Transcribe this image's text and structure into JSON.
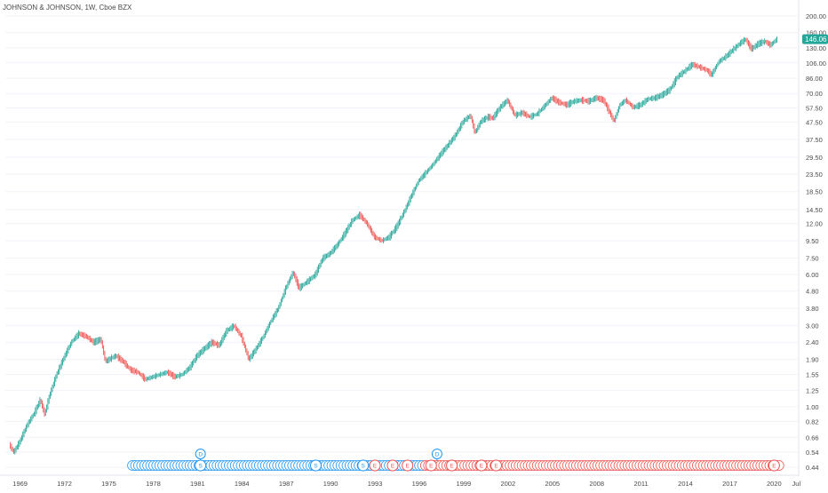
{
  "header": {
    "symbol_line": "JOHNSON & JOHNSON, 1W, Cboe BZX"
  },
  "colors": {
    "up": "#26a69a",
    "down": "#ef5350",
    "price_badge": "#26a69a",
    "dividend_marker": "#2196f3",
    "earnings_marker": "#ef5350",
    "split_marker": "#2196f3",
    "axis_text": "#4a4a4a",
    "axis_line": "#e0e3eb"
  },
  "last_price_label": "146.06",
  "chart_data": {
    "type": "candlestick",
    "title": "JOHNSON & JOHNSON, 1W, Cboe BZX",
    "y_scale": "log",
    "ylim": [
      0.4,
      210
    ],
    "x_range": [
      1968.0,
      2021.6
    ],
    "y_ticks": [
      "200.00",
      "160.00",
      "130.00",
      "106.00",
      "86.00",
      "70.00",
      "57.50",
      "47.50",
      "37.50",
      "29.50",
      "23.50",
      "18.50",
      "14.50",
      "12.00",
      "9.50",
      "7.50",
      "6.00",
      "4.80",
      "3.80",
      "3.00",
      "2.40",
      "1.90",
      "1.55",
      "1.25",
      "1.00",
      "0.82",
      "0.66",
      "0.54",
      "0.44"
    ],
    "x_ticks": [
      "1969",
      "1972",
      "1975",
      "1978",
      "1981",
      "1984",
      "1987",
      "1990",
      "1993",
      "1996",
      "1999",
      "2002",
      "2005",
      "2008",
      "2011",
      "2014",
      "2017",
      "2020",
      "Jul"
    ],
    "price_path": [
      [
        1968.3,
        0.6
      ],
      [
        1968.6,
        0.54
      ],
      [
        1969.0,
        0.62
      ],
      [
        1969.5,
        0.78
      ],
      [
        1970.0,
        0.92
      ],
      [
        1970.4,
        1.1
      ],
      [
        1970.7,
        0.9
      ],
      [
        1971.0,
        1.15
      ],
      [
        1971.5,
        1.55
      ],
      [
        1972.0,
        1.95
      ],
      [
        1972.5,
        2.4
      ],
      [
        1973.0,
        2.7
      ],
      [
        1973.5,
        2.6
      ],
      [
        1974.0,
        2.4
      ],
      [
        1974.5,
        2.5
      ],
      [
        1974.8,
        1.85
      ],
      [
        1975.5,
        2.0
      ],
      [
        1976.0,
        1.85
      ],
      [
        1976.5,
        1.65
      ],
      [
        1977.0,
        1.6
      ],
      [
        1977.5,
        1.45
      ],
      [
        1978.0,
        1.5
      ],
      [
        1978.5,
        1.55
      ],
      [
        1979.0,
        1.6
      ],
      [
        1979.5,
        1.5
      ],
      [
        1980.0,
        1.55
      ],
      [
        1980.5,
        1.7
      ],
      [
        1981.0,
        2.0
      ],
      [
        1981.5,
        2.2
      ],
      [
        1982.0,
        2.4
      ],
      [
        1982.5,
        2.3
      ],
      [
        1983.0,
        2.8
      ],
      [
        1983.5,
        3.0
      ],
      [
        1984.0,
        2.6
      ],
      [
        1984.5,
        1.9
      ],
      [
        1985.0,
        2.2
      ],
      [
        1985.5,
        2.6
      ],
      [
        1986.0,
        3.2
      ],
      [
        1986.5,
        3.8
      ],
      [
        1987.0,
        5.0
      ],
      [
        1987.5,
        6.2
      ],
      [
        1987.9,
        5.0
      ],
      [
        1988.5,
        5.5
      ],
      [
        1989.0,
        6.0
      ],
      [
        1989.5,
        7.5
      ],
      [
        1990.0,
        8.0
      ],
      [
        1990.5,
        9.0
      ],
      [
        1991.0,
        10.5
      ],
      [
        1991.5,
        12.5
      ],
      [
        1992.0,
        13.5
      ],
      [
        1992.5,
        12.0
      ],
      [
        1993.0,
        10.0
      ],
      [
        1993.5,
        9.5
      ],
      [
        1994.0,
        10.0
      ],
      [
        1994.5,
        11.5
      ],
      [
        1995.0,
        14.0
      ],
      [
        1995.5,
        17.5
      ],
      [
        1996.0,
        21.5
      ],
      [
        1996.5,
        24.0
      ],
      [
        1997.0,
        27.0
      ],
      [
        1997.5,
        31.0
      ],
      [
        1998.0,
        35.0
      ],
      [
        1998.5,
        40.0
      ],
      [
        1999.0,
        48.0
      ],
      [
        1999.5,
        52.0
      ],
      [
        1999.8,
        41.0
      ],
      [
        2000.2,
        48.0
      ],
      [
        2000.7,
        51.0
      ],
      [
        2001.0,
        50.0
      ],
      [
        2001.5,
        58.0
      ],
      [
        2002.0,
        64.0
      ],
      [
        2002.5,
        52.0
      ],
      [
        2003.0,
        54.0
      ],
      [
        2003.5,
        51.0
      ],
      [
        2004.0,
        53.0
      ],
      [
        2004.5,
        59.0
      ],
      [
        2005.0,
        66.0
      ],
      [
        2005.5,
        62.0
      ],
      [
        2006.0,
        60.0
      ],
      [
        2006.5,
        63.0
      ],
      [
        2007.0,
        64.0
      ],
      [
        2007.5,
        63.0
      ],
      [
        2008.0,
        66.0
      ],
      [
        2008.5,
        64.0
      ],
      [
        2009.2,
        48.0
      ],
      [
        2009.6,
        60.0
      ],
      [
        2010.0,
        64.0
      ],
      [
        2010.5,
        58.0
      ],
      [
        2011.0,
        60.0
      ],
      [
        2011.5,
        65.0
      ],
      [
        2012.0,
        66.0
      ],
      [
        2012.5,
        69.0
      ],
      [
        2013.0,
        74.0
      ],
      [
        2013.5,
        88.0
      ],
      [
        2014.0,
        95.0
      ],
      [
        2014.5,
        104.0
      ],
      [
        2015.0,
        100.0
      ],
      [
        2015.5,
        96.0
      ],
      [
        2015.8,
        90.0
      ],
      [
        2016.3,
        108.0
      ],
      [
        2016.8,
        116.0
      ],
      [
        2017.3,
        128.0
      ],
      [
        2017.8,
        140.0
      ],
      [
        2018.1,
        146.0
      ],
      [
        2018.5,
        128.0
      ],
      [
        2019.0,
        138.0
      ],
      [
        2019.4,
        142.0
      ],
      [
        2019.8,
        135.0
      ],
      [
        2020.2,
        146.06
      ]
    ],
    "event_markers": {
      "row_start_year": 1976.6,
      "row_end_year": 2020.35,
      "color_switch_year": 1996.3,
      "labeled": [
        {
          "year": 1981.2,
          "letter": "S"
        },
        {
          "year": 1989.0,
          "letter": "S"
        },
        {
          "year": 1992.2,
          "letter": "S"
        },
        {
          "year": 1993.0,
          "letter": "E"
        },
        {
          "year": 1994.2,
          "letter": "E"
        },
        {
          "year": 1995.2,
          "letter": "E"
        },
        {
          "year": 1996.8,
          "letter": "E"
        },
        {
          "year": 1998.2,
          "letter": "E"
        },
        {
          "year": 2000.2,
          "letter": "E"
        },
        {
          "year": 2001.2,
          "letter": "E"
        },
        {
          "year": 2020.0,
          "letter": "E"
        }
      ],
      "dividend_flags": [
        {
          "year": 1981.2,
          "letter": "D"
        },
        {
          "year": 1997.2,
          "letter": "D"
        }
      ]
    }
  }
}
